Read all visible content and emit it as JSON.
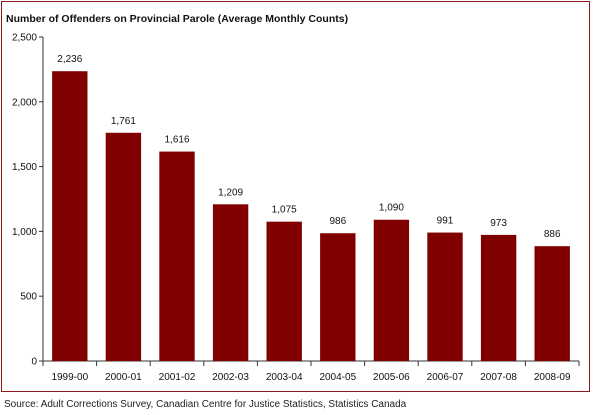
{
  "chart_data": {
    "type": "bar",
    "title": "Number of Offenders on Provincial Parole (Average Monthly Counts)",
    "xlabel": "",
    "ylabel": "",
    "categories": [
      "1999-00",
      "2000-01",
      "2001-02",
      "2002-03",
      "2003-04",
      "2004-05",
      "2005-06",
      "2006-07",
      "2007-08",
      "2008-09"
    ],
    "values": [
      2236,
      1761,
      1616,
      1209,
      1075,
      986,
      1090,
      991,
      973,
      886
    ],
    "value_labels": [
      "2,236",
      "1,761",
      "1,616",
      "1,209",
      "1,075",
      "986",
      "1,090",
      "991",
      "973",
      "886"
    ],
    "ylim": [
      0,
      2500
    ],
    "yticks": [
      0,
      500,
      1000,
      1500,
      2000,
      2500
    ],
    "ytick_labels": [
      "0",
      "500",
      "1,000",
      "1,500",
      "2,000",
      "2,500"
    ],
    "grid": false,
    "legend": "none",
    "bar_color": "#800000",
    "frame_color": "#8b1a1a"
  },
  "source_text": "Source:  Adult Corrections Survey, Canadian Centre for Justice Statistics, Statistics Canada"
}
